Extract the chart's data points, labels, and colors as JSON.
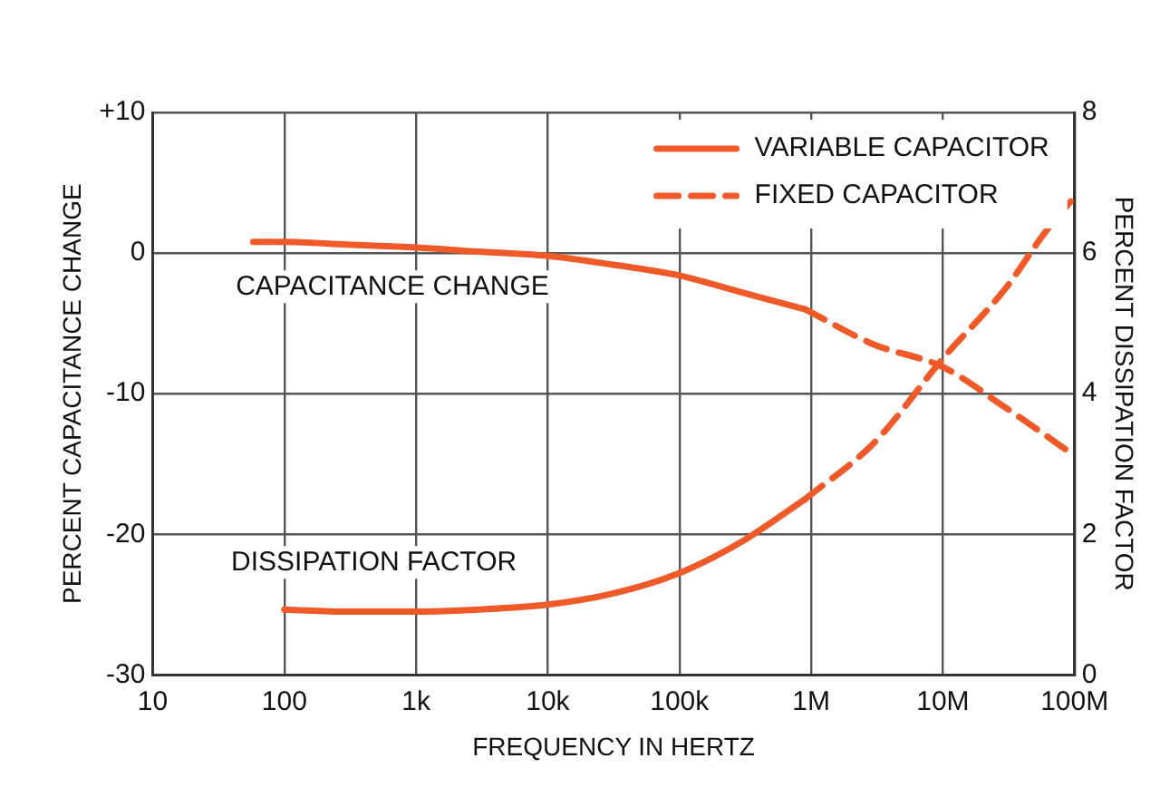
{
  "chart_data": {
    "type": "line",
    "xlabel": "FREQUENCY IN HERTZ",
    "ylabel": "PERCENT CAPACITANCE CHANGE",
    "y2label": "PERCENT DISSIPATION FACTOR",
    "log": "x",
    "grid": true,
    "legend": "top right",
    "marker": "none",
    "xlim": [
      10,
      100000000
    ],
    "xticks": [
      10,
      100,
      {
        "value": 1000,
        "label": "1k"
      },
      {
        "value": 10000,
        "label": "10k"
      },
      {
        "value": 100000,
        "label": "100k"
      },
      {
        "value": 1000000,
        "label": "1M"
      },
      {
        "value": 10000000,
        "label": "10M"
      },
      {
        "value": 100000000,
        "label": "100M"
      }
    ],
    "ylim": [
      -30,
      10
    ],
    "yticks": [
      -30,
      -20,
      -10,
      0,
      {
        "value": 10,
        "label": "+10"
      }
    ],
    "y2lim": [
      0,
      8
    ],
    "y2ticks": [
      0,
      2,
      4,
      6,
      8
    ],
    "series": [
      {
        "name": "VARIABLE CAPACITOR",
        "color": "#f05a28",
        "line_style": "solid",
        "x": [
          58,
          100,
          300,
          1000,
          3000,
          10000,
          30000,
          100000,
          300000,
          900000
        ],
        "values": [
          0.8,
          0.8,
          0.6,
          0.4,
          0.1,
          -0.2,
          -0.8,
          -1.6,
          -2.8,
          -4.0
        ]
      },
      {
        "name": "FIXED CAPACITOR",
        "color": "#f05a28",
        "line_style": "dashed",
        "x": [
          900000,
          3000000,
          10000000,
          30000000,
          100000000
        ],
        "values": [
          -4.0,
          -6.5,
          -8.1,
          -11,
          -14.4
        ]
      },
      {
        "color": "#f05a28",
        "line_style": "solid",
        "axis": "y2",
        "x": [
          100,
          300,
          1000,
          3000,
          10000,
          30000,
          100000,
          300000,
          900000
        ],
        "values": [
          0.93,
          0.9,
          0.9,
          0.93,
          1.0,
          1.15,
          1.45,
          1.9,
          2.5
        ]
      },
      {
        "color": "#f05a28",
        "line_style": "dashed",
        "axis": "y2",
        "x": [
          900000,
          3000000,
          10000000,
          30000000,
          60000000,
          100000000
        ],
        "values": [
          2.5,
          3.3,
          4.5,
          5.5,
          6.3,
          6.8
        ]
      }
    ],
    "annotations": [
      "CAPACITANCE CHANGE",
      "DISSIPATION FACTOR"
    ]
  }
}
